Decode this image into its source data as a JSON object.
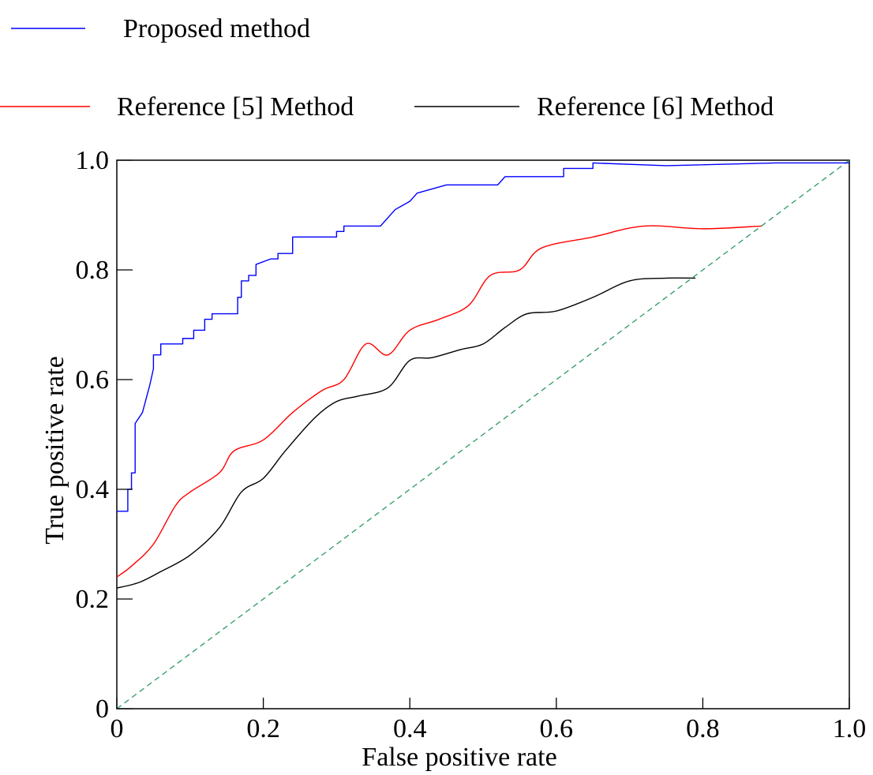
{
  "chart_data": {
    "type": "line",
    "xlabel": "False positive rate",
    "ylabel": "True positive rate",
    "xlim": [
      0,
      1
    ],
    "ylim": [
      0,
      1
    ],
    "xticks": [
      "0",
      "0.2",
      "0.4",
      "0.6",
      "0.8",
      "1.0"
    ],
    "yticks": [
      "0",
      "0.2",
      "0.4",
      "0.6",
      "0.8",
      "1.0"
    ],
    "grid": false,
    "legend_position": "top",
    "series": [
      {
        "name": "Proposed method",
        "color": "#0000ff",
        "style": "step",
        "x": [
          0.0,
          0.015,
          0.015,
          0.02,
          0.02,
          0.025,
          0.025,
          0.035,
          0.045,
          0.045,
          0.05,
          0.05,
          0.06,
          0.06,
          0.065,
          0.065,
          0.09,
          0.09,
          0.105,
          0.105,
          0.12,
          0.12,
          0.13,
          0.13,
          0.165,
          0.165,
          0.17,
          0.17,
          0.18,
          0.18,
          0.19,
          0.19,
          0.21,
          0.22,
          0.22,
          0.24,
          0.24,
          0.3,
          0.3,
          0.31,
          0.31,
          0.36,
          0.38,
          0.4,
          0.41,
          0.45,
          0.52,
          0.53,
          0.61,
          0.61,
          0.63,
          0.65,
          0.65,
          0.75,
          0.9,
          1.0
        ],
        "y": [
          0.36,
          0.36,
          0.4,
          0.4,
          0.43,
          0.43,
          0.52,
          0.54,
          0.59,
          0.59,
          0.62,
          0.645,
          0.645,
          0.665,
          0.665,
          0.665,
          0.665,
          0.675,
          0.675,
          0.69,
          0.69,
          0.71,
          0.71,
          0.72,
          0.72,
          0.75,
          0.75,
          0.78,
          0.78,
          0.79,
          0.79,
          0.81,
          0.82,
          0.82,
          0.83,
          0.83,
          0.86,
          0.86,
          0.87,
          0.87,
          0.88,
          0.88,
          0.91,
          0.925,
          0.94,
          0.955,
          0.955,
          0.97,
          0.97,
          0.985,
          0.985,
          0.985,
          0.995,
          0.99,
          0.995,
          0.995
        ]
      },
      {
        "name": "Reference [5] Method",
        "color": "#ff0000",
        "style": "smooth",
        "x": [
          0.0,
          0.02,
          0.05,
          0.08,
          0.1,
          0.14,
          0.16,
          0.2,
          0.24,
          0.28,
          0.31,
          0.34,
          0.37,
          0.4,
          0.44,
          0.48,
          0.51,
          0.55,
          0.58,
          0.65,
          0.72,
          0.8,
          0.88
        ],
        "y": [
          0.24,
          0.26,
          0.3,
          0.37,
          0.395,
          0.43,
          0.47,
          0.49,
          0.54,
          0.58,
          0.6,
          0.665,
          0.645,
          0.69,
          0.71,
          0.735,
          0.79,
          0.8,
          0.84,
          0.86,
          0.88,
          0.875,
          0.88
        ]
      },
      {
        "name": "Reference [6] Method",
        "color": "#000000",
        "style": "smooth",
        "x": [
          0.0,
          0.03,
          0.06,
          0.1,
          0.14,
          0.17,
          0.2,
          0.23,
          0.27,
          0.3,
          0.33,
          0.37,
          0.4,
          0.43,
          0.47,
          0.5,
          0.53,
          0.56,
          0.6,
          0.65,
          0.7,
          0.75,
          0.79
        ],
        "y": [
          0.22,
          0.23,
          0.25,
          0.28,
          0.33,
          0.395,
          0.42,
          0.47,
          0.53,
          0.56,
          0.57,
          0.585,
          0.635,
          0.64,
          0.655,
          0.665,
          0.695,
          0.72,
          0.725,
          0.75,
          0.78,
          0.785,
          0.785
        ]
      },
      {
        "name": "",
        "color": "#2a9a60",
        "style": "dashed",
        "x": [
          0,
          1
        ],
        "y": [
          0,
          1
        ]
      }
    ]
  }
}
